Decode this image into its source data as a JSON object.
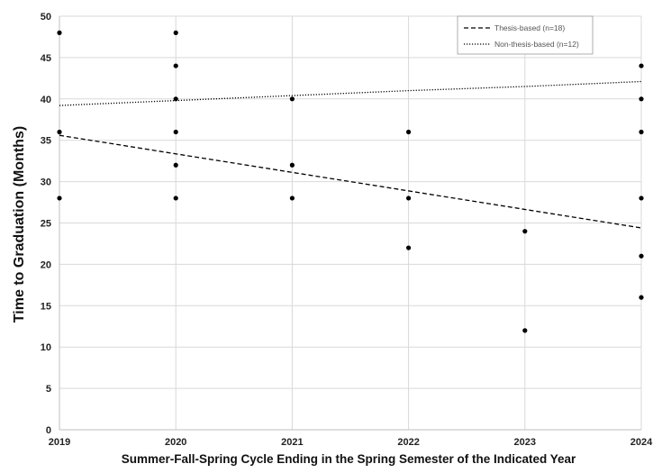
{
  "chart_data": {
    "type": "scatter",
    "xlabel": "Summer-Fall-Spring Cycle Ending in the Spring Semester of the Indicated Year",
    "ylabel": "Time to Graduation (Months)",
    "xlim": [
      2019,
      2024
    ],
    "ylim": [
      0,
      50
    ],
    "x_ticks": [
      "2019",
      "2020",
      "2021",
      "2022",
      "2023",
      "2024"
    ],
    "y_ticks": [
      "0",
      "5",
      "10",
      "15",
      "20",
      "25",
      "30",
      "35",
      "40",
      "45",
      "50"
    ],
    "grid": true,
    "legend_position": "top-right",
    "points": [
      {
        "x": 2019,
        "y": 48
      },
      {
        "x": 2019,
        "y": 36
      },
      {
        "x": 2019,
        "y": 28
      },
      {
        "x": 2020,
        "y": 48
      },
      {
        "x": 2020,
        "y": 44
      },
      {
        "x": 2020,
        "y": 40
      },
      {
        "x": 2020,
        "y": 36
      },
      {
        "x": 2020,
        "y": 32
      },
      {
        "x": 2020,
        "y": 28
      },
      {
        "x": 2021,
        "y": 40
      },
      {
        "x": 2021,
        "y": 32
      },
      {
        "x": 2021,
        "y": 28
      },
      {
        "x": 2022,
        "y": 36
      },
      {
        "x": 2022,
        "y": 28
      },
      {
        "x": 2022,
        "y": 22
      },
      {
        "x": 2023,
        "y": 24
      },
      {
        "x": 2023,
        "y": 12
      },
      {
        "x": 2024,
        "y": 44
      },
      {
        "x": 2024,
        "y": 40
      },
      {
        "x": 2024,
        "y": 36
      },
      {
        "x": 2024,
        "y": 28
      },
      {
        "x": 2024,
        "y": 21
      },
      {
        "x": 2024,
        "y": 16
      }
    ],
    "series": [
      {
        "name": "Thesis-based (n=18)",
        "style": "dashed",
        "x": [
          2019,
          2024
        ],
        "y": [
          35.6,
          24.4
        ]
      },
      {
        "name": "Non-thesis-based (n=12)",
        "style": "dotted",
        "x": [
          2019,
          2020,
          2021,
          2022,
          2023,
          2024
        ],
        "y": [
          39.2,
          39.8,
          40.4,
          41.0,
          41.5,
          42.1
        ]
      }
    ],
    "colors": {
      "points": "#000000",
      "grid": "#d9d9d9",
      "lines": "#000000"
    }
  }
}
